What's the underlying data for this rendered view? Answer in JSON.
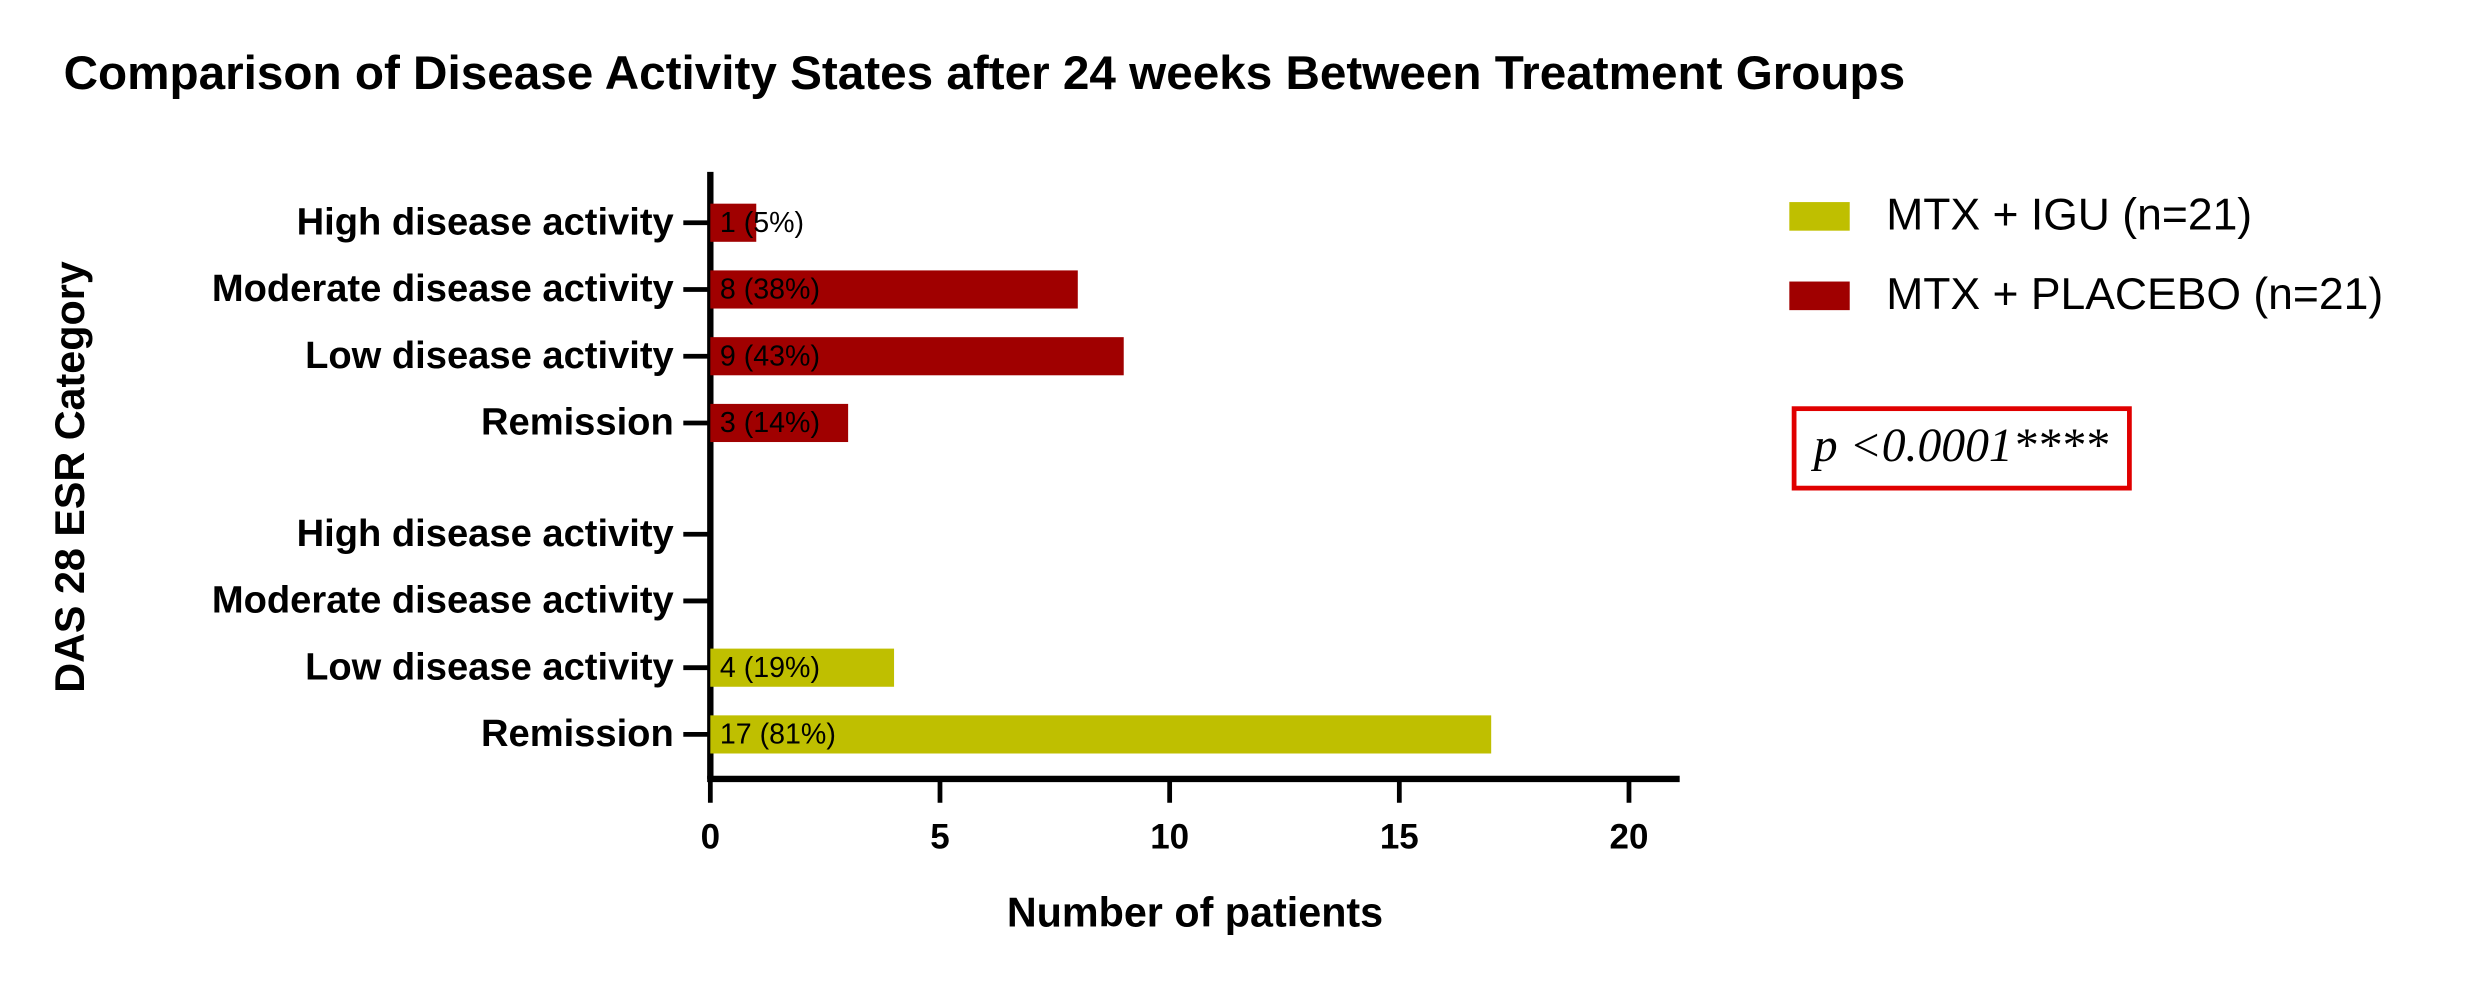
{
  "chart_data": {
    "type": "bar",
    "orientation": "horizontal",
    "title": "Comparison of Disease Activity States after 24 weeks Between Treatment Groups",
    "x_label": "Number of patients",
    "y_label": "DAS 28 ESR Category",
    "categories": [
      "High disease activity",
      "Moderate disease activity",
      "Low disease activity",
      "Remission",
      "High disease activity",
      "Moderate disease activity",
      "Low disease activity",
      "Remission"
    ],
    "series": [
      {
        "name": "MTX + IGU (n=21)",
        "color": "#bfbf00",
        "values": [
          null,
          null,
          null,
          null,
          0,
          0,
          4,
          17
        ],
        "value_labels": [
          null,
          null,
          null,
          null,
          null,
          null,
          "4 (19%)",
          "17 (81%)"
        ]
      },
      {
        "name": "MTX + PLACEBO (n=21)",
        "color": "#a00000",
        "values": [
          1,
          8,
          9,
          3,
          null,
          null,
          null,
          null
        ],
        "value_labels": [
          "1 (5%)",
          "8 (38%)",
          "9 (43%)",
          "3 (14%)",
          null,
          null,
          null,
          null
        ]
      }
    ],
    "xlim": [
      0,
      21
    ],
    "xticks": [
      0,
      5,
      10,
      15,
      20
    ],
    "annotation": "p <0.0001****"
  }
}
